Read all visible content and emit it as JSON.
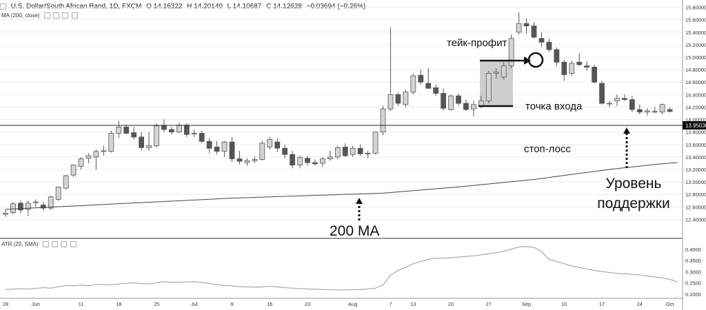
{
  "header": {
    "symbol": "U.S. Dollar/South African Rand, 1D, FXCM",
    "open": "O 14.16322",
    "high": "H 14.20140",
    "low": "L 14.10687",
    "close": "C 14.12628",
    "change": "−0.03694 (−0.26%)"
  },
  "ma_study": {
    "label": "MA (200, close)"
  },
  "atr_study": {
    "label": "ATR (20, SMA)"
  },
  "price_marker": {
    "label": "13.95030"
  },
  "price_axis": {
    "ticks": [
      "15.80000",
      "15.60000",
      "15.40000",
      "15.20000",
      "15.00000",
      "14.80000",
      "14.60000",
      "14.40000",
      "14.20000",
      "14.00000",
      "13.80000",
      "13.60000",
      "13.40000",
      "13.20000",
      "13.00000",
      "12.80000",
      "12.60000",
      "12.40000"
    ]
  },
  "atr_axis": {
    "ticks": [
      "0.4000",
      "0.3500",
      "0.3000",
      "0.2500",
      "0.2000"
    ]
  },
  "time_axis": {
    "ticks": [
      "28",
      "Jun",
      "11",
      "18",
      "25",
      "Jul",
      "9",
      "16",
      "23",
      "Aug",
      "7",
      "13",
      "20",
      "27",
      "Sep",
      "10",
      "17",
      "24",
      "Oct"
    ]
  },
  "annotations": {
    "take_profit": "тейк-профит",
    "entry": "точка входа",
    "stop_loss": "стоп-лосс",
    "support": "Уровень\nподдержки",
    "ma200": "200 MA"
  },
  "colors": {
    "bull_body": "#d4d4d4",
    "bear_body": "#555555",
    "wick": "#555555",
    "marker_bg": "#000000",
    "shade": "#bdbdbd"
  },
  "chart_data": {
    "type": "candlestick",
    "ylim": [
      12.25,
      15.85
    ],
    "candles": [
      {
        "o": 12.48,
        "h": 12.56,
        "l": 12.44,
        "c": 12.5
      },
      {
        "o": 12.51,
        "h": 12.68,
        "l": 12.48,
        "c": 12.65
      },
      {
        "o": 12.66,
        "h": 12.7,
        "l": 12.5,
        "c": 12.55
      },
      {
        "o": 12.56,
        "h": 12.7,
        "l": 12.45,
        "c": 12.66
      },
      {
        "o": 12.67,
        "h": 12.72,
        "l": 12.6,
        "c": 12.68
      },
      {
        "o": 12.63,
        "h": 12.68,
        "l": 12.54,
        "c": 12.58
      },
      {
        "o": 12.58,
        "h": 12.78,
        "l": 12.55,
        "c": 12.76
      },
      {
        "o": 12.72,
        "h": 12.92,
        "l": 12.7,
        "c": 12.92
      },
      {
        "o": 12.9,
        "h": 13.11,
        "l": 12.88,
        "c": 13.1
      },
      {
        "o": 13.11,
        "h": 13.28,
        "l": 13.08,
        "c": 13.27
      },
      {
        "o": 13.25,
        "h": 13.4,
        "l": 13.2,
        "c": 13.37
      },
      {
        "o": 13.38,
        "h": 13.46,
        "l": 13.3,
        "c": 13.42
      },
      {
        "o": 13.4,
        "h": 13.52,
        "l": 13.2,
        "c": 13.49
      },
      {
        "o": 13.5,
        "h": 13.58,
        "l": 13.42,
        "c": 13.5
      },
      {
        "o": 13.49,
        "h": 13.82,
        "l": 13.47,
        "c": 13.78
      },
      {
        "o": 13.78,
        "h": 13.98,
        "l": 13.7,
        "c": 13.88
      },
      {
        "o": 13.88,
        "h": 13.92,
        "l": 13.76,
        "c": 13.78
      },
      {
        "o": 13.79,
        "h": 13.88,
        "l": 13.68,
        "c": 13.72
      },
      {
        "o": 13.72,
        "h": 13.8,
        "l": 13.5,
        "c": 13.55
      },
      {
        "o": 13.55,
        "h": 13.8,
        "l": 13.5,
        "c": 13.58
      },
      {
        "o": 13.58,
        "h": 13.94,
        "l": 13.55,
        "c": 13.9
      },
      {
        "o": 13.9,
        "h": 14.0,
        "l": 13.8,
        "c": 13.84
      },
      {
        "o": 13.84,
        "h": 13.88,
        "l": 13.76,
        "c": 13.8
      },
      {
        "o": 13.8,
        "h": 13.95,
        "l": 13.78,
        "c": 13.91
      },
      {
        "o": 13.91,
        "h": 13.94,
        "l": 13.72,
        "c": 13.76
      },
      {
        "o": 13.78,
        "h": 13.84,
        "l": 13.72,
        "c": 13.78
      },
      {
        "o": 13.78,
        "h": 13.82,
        "l": 13.62,
        "c": 13.65
      },
      {
        "o": 13.65,
        "h": 13.7,
        "l": 13.46,
        "c": 13.54
      },
      {
        "o": 13.56,
        "h": 13.66,
        "l": 13.44,
        "c": 13.49
      },
      {
        "o": 13.49,
        "h": 13.66,
        "l": 13.4,
        "c": 13.64
      },
      {
        "o": 13.64,
        "h": 13.72,
        "l": 13.32,
        "c": 13.37
      },
      {
        "o": 13.37,
        "h": 13.5,
        "l": 13.28,
        "c": 13.33
      },
      {
        "o": 13.31,
        "h": 13.38,
        "l": 13.26,
        "c": 13.34
      },
      {
        "o": 13.34,
        "h": 13.4,
        "l": 13.3,
        "c": 13.36
      },
      {
        "o": 13.36,
        "h": 13.66,
        "l": 13.34,
        "c": 13.62
      },
      {
        "o": 13.56,
        "h": 13.72,
        "l": 13.52,
        "c": 13.68
      },
      {
        "o": 13.64,
        "h": 13.7,
        "l": 13.48,
        "c": 13.54
      },
      {
        "o": 13.54,
        "h": 13.6,
        "l": 13.38,
        "c": 13.44
      },
      {
        "o": 13.44,
        "h": 13.5,
        "l": 13.22,
        "c": 13.27
      },
      {
        "o": 13.27,
        "h": 13.42,
        "l": 13.22,
        "c": 13.39
      },
      {
        "o": 13.38,
        "h": 13.42,
        "l": 13.26,
        "c": 13.31
      },
      {
        "o": 13.31,
        "h": 13.36,
        "l": 13.26,
        "c": 13.29
      },
      {
        "o": 13.3,
        "h": 13.4,
        "l": 13.24,
        "c": 13.37
      },
      {
        "o": 13.37,
        "h": 13.5,
        "l": 13.34,
        "c": 13.4
      },
      {
        "o": 13.4,
        "h": 13.58,
        "l": 13.36,
        "c": 13.55
      },
      {
        "o": 13.56,
        "h": 13.62,
        "l": 13.4,
        "c": 13.42
      },
      {
        "o": 13.44,
        "h": 13.58,
        "l": 13.4,
        "c": 13.54
      },
      {
        "o": 13.54,
        "h": 13.6,
        "l": 13.42,
        "c": 13.45
      },
      {
        "o": 13.46,
        "h": 13.5,
        "l": 13.38,
        "c": 13.46
      },
      {
        "o": 13.46,
        "h": 13.8,
        "l": 13.44,
        "c": 13.8
      },
      {
        "o": 13.8,
        "h": 14.22,
        "l": 13.75,
        "c": 14.17
      },
      {
        "o": 14.17,
        "h": 15.48,
        "l": 14.14,
        "c": 14.4
      },
      {
        "o": 14.4,
        "h": 14.44,
        "l": 14.22,
        "c": 14.26
      },
      {
        "o": 14.24,
        "h": 14.48,
        "l": 14.2,
        "c": 14.44
      },
      {
        "o": 14.44,
        "h": 14.74,
        "l": 14.4,
        "c": 14.7
      },
      {
        "o": 14.71,
        "h": 14.8,
        "l": 14.56,
        "c": 14.6
      },
      {
        "o": 14.58,
        "h": 14.82,
        "l": 14.5,
        "c": 14.5
      },
      {
        "o": 14.51,
        "h": 14.56,
        "l": 14.38,
        "c": 14.42
      },
      {
        "o": 14.42,
        "h": 14.5,
        "l": 14.14,
        "c": 14.18
      },
      {
        "o": 14.16,
        "h": 14.4,
        "l": 14.14,
        "c": 14.38
      },
      {
        "o": 14.38,
        "h": 14.42,
        "l": 14.22,
        "c": 14.26
      },
      {
        "o": 14.26,
        "h": 14.32,
        "l": 14.14,
        "c": 14.16
      },
      {
        "o": 14.17,
        "h": 14.3,
        "l": 14.05,
        "c": 14.24
      },
      {
        "o": 14.22,
        "h": 14.38,
        "l": 14.18,
        "c": 14.3
      },
      {
        "o": 14.3,
        "h": 14.78,
        "l": 14.26,
        "c": 14.74
      },
      {
        "o": 14.74,
        "h": 14.82,
        "l": 14.66,
        "c": 14.76
      },
      {
        "o": 14.68,
        "h": 14.92,
        "l": 14.64,
        "c": 14.86
      },
      {
        "o": 14.86,
        "h": 15.36,
        "l": 14.82,
        "c": 15.3
      },
      {
        "o": 15.4,
        "h": 15.72,
        "l": 15.36,
        "c": 15.54
      },
      {
        "o": 15.54,
        "h": 15.62,
        "l": 15.38,
        "c": 15.5
      },
      {
        "o": 15.5,
        "h": 15.56,
        "l": 15.3,
        "c": 15.32
      },
      {
        "o": 15.3,
        "h": 15.4,
        "l": 15.16,
        "c": 15.24
      },
      {
        "o": 15.24,
        "h": 15.3,
        "l": 15.08,
        "c": 15.12
      },
      {
        "o": 15.12,
        "h": 15.16,
        "l": 14.86,
        "c": 14.92
      },
      {
        "o": 14.92,
        "h": 14.96,
        "l": 14.62,
        "c": 14.72
      },
      {
        "o": 14.74,
        "h": 14.94,
        "l": 14.7,
        "c": 14.9
      },
      {
        "o": 14.92,
        "h": 15.06,
        "l": 14.86,
        "c": 14.88
      },
      {
        "o": 14.86,
        "h": 14.94,
        "l": 14.78,
        "c": 14.84
      },
      {
        "o": 14.84,
        "h": 14.88,
        "l": 14.58,
        "c": 14.6
      },
      {
        "o": 14.58,
        "h": 14.62,
        "l": 14.24,
        "c": 14.26
      },
      {
        "o": 14.26,
        "h": 14.3,
        "l": 14.2,
        "c": 14.26
      },
      {
        "o": 14.3,
        "h": 14.4,
        "l": 14.22,
        "c": 14.34
      },
      {
        "o": 14.34,
        "h": 14.4,
        "l": 14.3,
        "c": 14.32
      },
      {
        "o": 14.32,
        "h": 14.38,
        "l": 14.12,
        "c": 14.16
      },
      {
        "o": 14.16,
        "h": 14.24,
        "l": 14.08,
        "c": 14.12
      },
      {
        "o": 14.12,
        "h": 14.18,
        "l": 14.06,
        "c": 14.14
      },
      {
        "o": 14.13,
        "h": 14.2,
        "l": 14.1,
        "c": 14.13
      },
      {
        "o": 14.12,
        "h": 14.26,
        "l": 14.08,
        "c": 14.24
      },
      {
        "o": 14.16,
        "h": 14.2,
        "l": 14.11,
        "c": 14.13
      }
    ],
    "ma200": [
      [
        0,
        12.56
      ],
      [
        10,
        12.62
      ],
      [
        20,
        12.68
      ],
      [
        30,
        12.74
      ],
      [
        40,
        12.78
      ],
      [
        50,
        12.82
      ],
      [
        60,
        12.92
      ],
      [
        70,
        13.04
      ],
      [
        80,
        13.2
      ],
      [
        86,
        13.28
      ],
      [
        89,
        13.31
      ]
    ],
    "atr": {
      "ylim": [
        0.19,
        0.43
      ],
      "values": [
        0.22,
        0.222,
        0.224,
        0.222,
        0.225,
        0.228,
        0.226,
        0.232,
        0.238,
        0.236,
        0.24,
        0.236,
        0.243,
        0.242,
        0.24,
        0.245,
        0.248,
        0.25,
        0.246,
        0.245,
        0.25,
        0.255,
        0.252,
        0.253,
        0.254,
        0.255,
        0.251,
        0.247,
        0.242,
        0.238,
        0.236,
        0.233,
        0.232,
        0.23,
        0.232,
        0.235,
        0.232,
        0.228,
        0.226,
        0.224,
        0.222,
        0.221,
        0.22,
        0.219,
        0.218,
        0.218,
        0.219,
        0.22,
        0.222,
        0.226,
        0.24,
        0.285,
        0.305,
        0.32,
        0.335,
        0.345,
        0.355,
        0.36,
        0.36,
        0.362,
        0.365,
        0.368,
        0.37,
        0.375,
        0.38,
        0.385,
        0.39,
        0.4,
        0.41,
        0.412,
        0.408,
        0.39,
        0.355,
        0.345,
        0.335,
        0.325,
        0.318,
        0.312,
        0.305,
        0.3,
        0.296,
        0.292,
        0.29,
        0.288,
        0.285,
        0.28,
        0.276,
        0.272,
        0.265,
        0.255
      ]
    }
  }
}
